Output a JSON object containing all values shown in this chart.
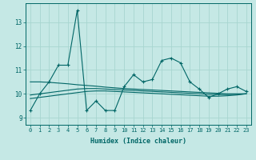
{
  "title": "",
  "xlabel": "Humidex (Indice chaleur)",
  "xlim": [
    -0.5,
    23.5
  ],
  "ylim": [
    8.7,
    13.8
  ],
  "yticks": [
    9,
    10,
    11,
    12,
    13
  ],
  "xticks": [
    0,
    1,
    2,
    3,
    4,
    5,
    6,
    7,
    8,
    9,
    10,
    11,
    12,
    13,
    14,
    15,
    16,
    17,
    18,
    19,
    20,
    21,
    22,
    23
  ],
  "bg_color": "#c5e8e5",
  "line_color": "#006666",
  "grid_color": "#a8d5d0",
  "series_main": [
    9.3,
    10.0,
    10.5,
    11.2,
    11.2,
    13.5,
    9.3,
    9.7,
    9.3,
    9.3,
    10.3,
    10.8,
    10.5,
    10.6,
    11.4,
    11.5,
    11.3,
    10.5,
    10.2,
    9.85,
    10.0,
    10.2,
    10.3,
    10.1
  ],
  "series_s1": [
    10.5,
    10.5,
    10.48,
    10.45,
    10.42,
    10.38,
    10.35,
    10.32,
    10.28,
    10.25,
    10.22,
    10.2,
    10.18,
    10.16,
    10.14,
    10.12,
    10.1,
    10.08,
    10.06,
    10.04,
    10.02,
    10.0,
    10.0,
    10.0
  ],
  "series_s2": [
    9.95,
    10.0,
    10.05,
    10.1,
    10.15,
    10.2,
    10.22,
    10.22,
    10.2,
    10.18,
    10.16,
    10.14,
    10.12,
    10.1,
    10.08,
    10.06,
    10.04,
    10.02,
    10.0,
    9.98,
    9.97,
    9.97,
    9.98,
    10.0
  ],
  "series_s3": [
    9.8,
    9.85,
    9.9,
    9.95,
    10.0,
    10.05,
    10.1,
    10.12,
    10.12,
    10.1,
    10.08,
    10.06,
    10.04,
    10.02,
    10.0,
    9.98,
    9.96,
    9.94,
    9.92,
    9.9,
    9.9,
    9.92,
    9.95,
    10.0
  ]
}
